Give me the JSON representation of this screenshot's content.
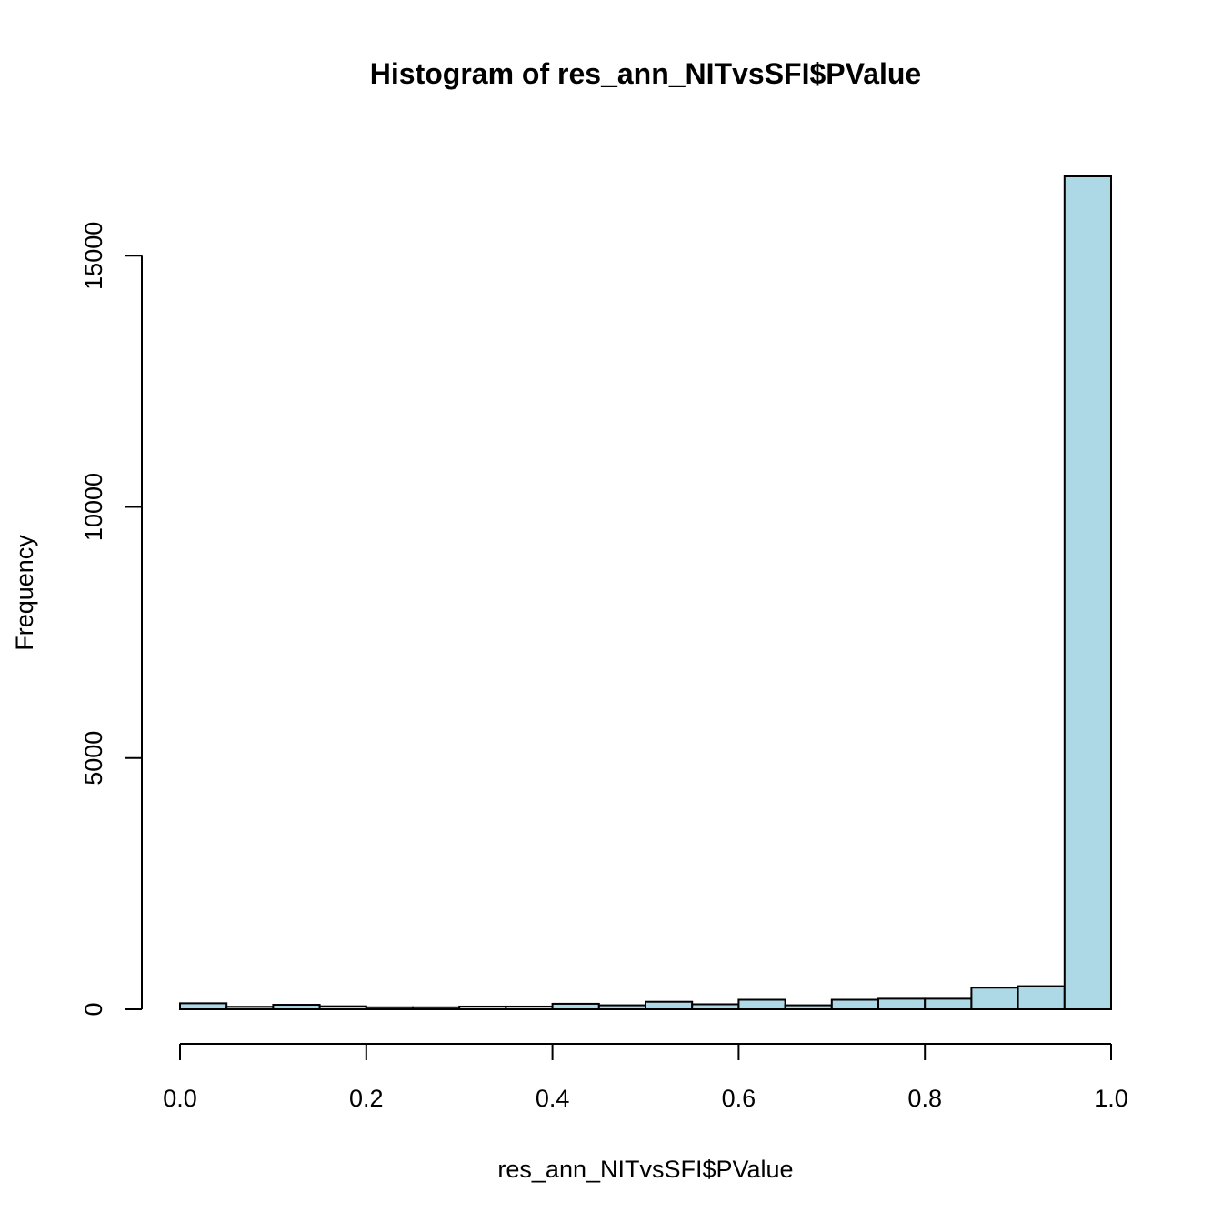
{
  "chart_data": {
    "type": "bar",
    "title": "Histogram of res_ann_NITvsSFI$PValue",
    "xlabel": "res_ann_NITvsSFI$PValue",
    "ylabel": "Frequency",
    "bin_edges": [
      0.0,
      0.05,
      0.1,
      0.15,
      0.2,
      0.25,
      0.3,
      0.35,
      0.4,
      0.45,
      0.5,
      0.55,
      0.6,
      0.65,
      0.7,
      0.75,
      0.8,
      0.85,
      0.9,
      0.95,
      1.0
    ],
    "values": [
      120,
      50,
      90,
      60,
      40,
      40,
      55,
      55,
      110,
      80,
      150,
      100,
      190,
      80,
      190,
      210,
      210,
      430,
      460,
      16580
    ],
    "xticks": [
      0.0,
      0.2,
      0.4,
      0.6,
      0.8,
      1.0
    ],
    "xtick_labels": [
      "0.0",
      "0.2",
      "0.4",
      "0.6",
      "0.8",
      "1.0"
    ],
    "yticks": [
      0,
      5000,
      10000,
      15000
    ],
    "ytick_labels": [
      "0",
      "5000",
      "10000",
      "15000"
    ],
    "xlim": [
      0.0,
      1.0
    ],
    "ylim": [
      0,
      16580
    ],
    "bar_color": "#ADD8E6",
    "grid": false,
    "legend": "none"
  }
}
